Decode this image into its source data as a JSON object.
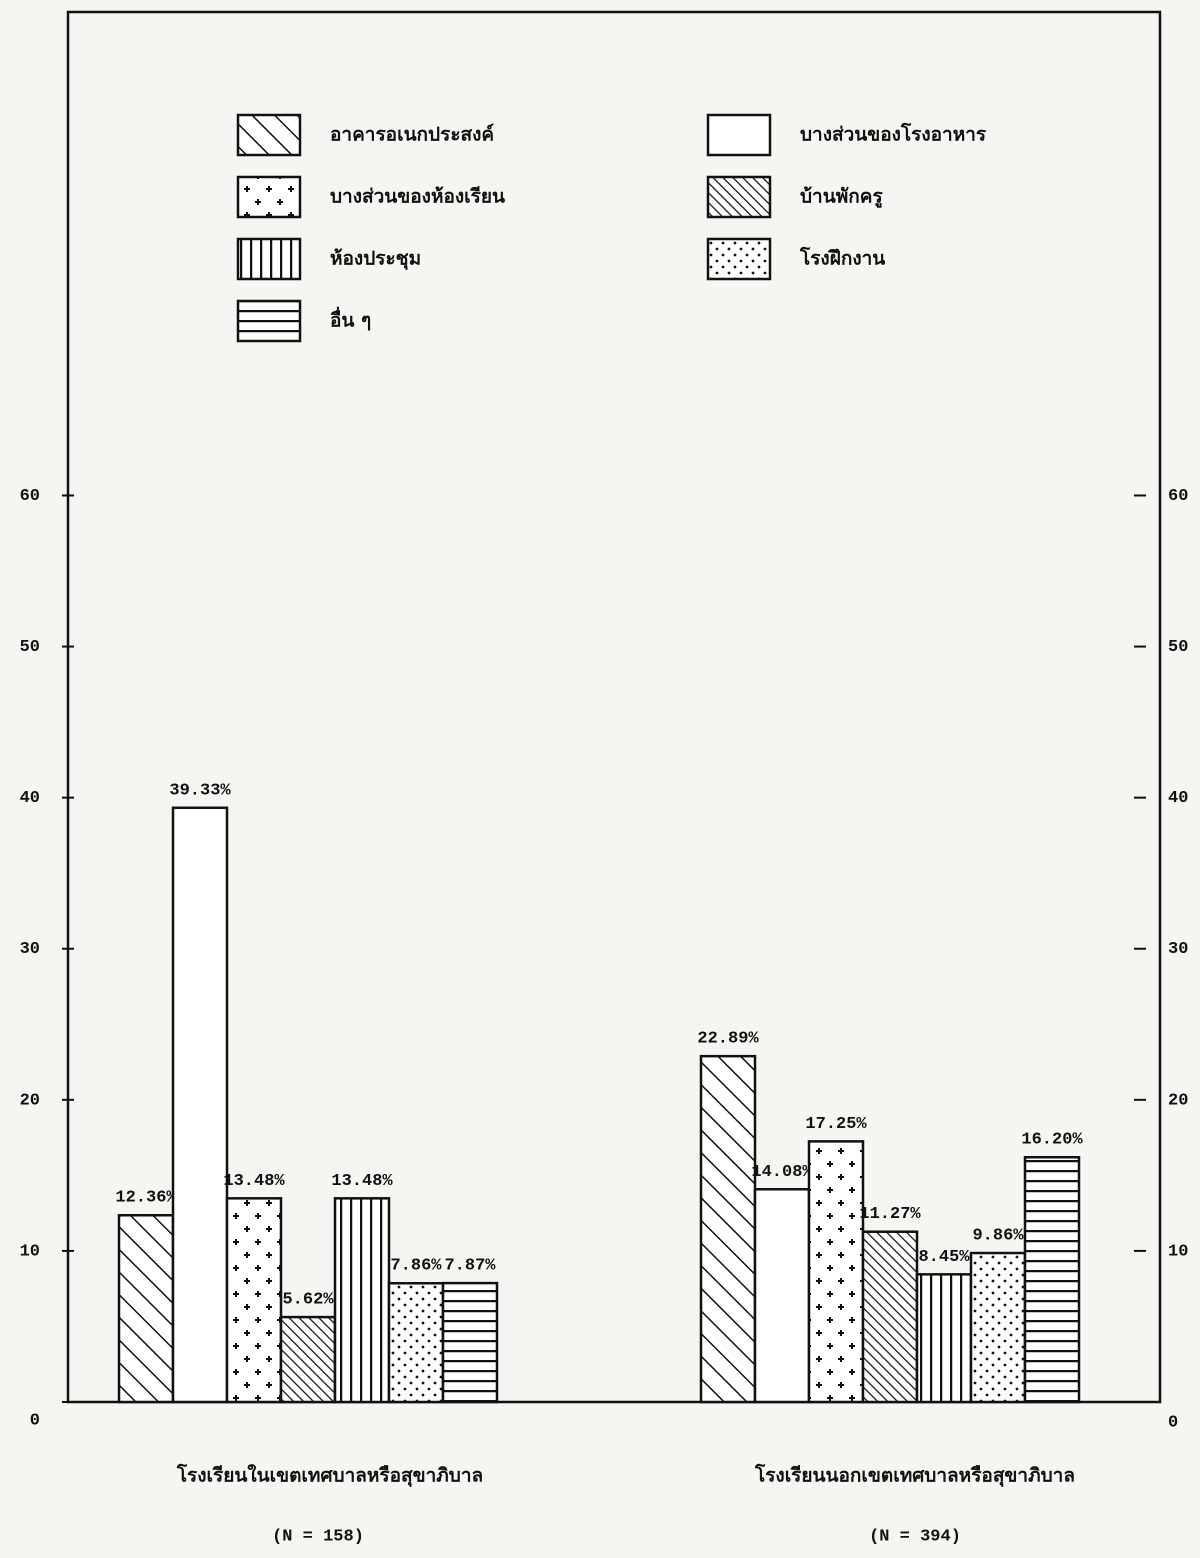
{
  "chart_data": {
    "type": "bar",
    "categories": [
      "โรงเรียนในเขตเทศบาลหรือสุขาภิบาล",
      "โรงเรียนนอกเขตเทศบาลหรือสุขาภิบาล"
    ],
    "category_notes": [
      "(N = 158)",
      "(N = 394)"
    ],
    "series": [
      {
        "name": "อาคารอเนกประสงค์",
        "color": "#111111",
        "pattern": "diagonal",
        "values": [
          12.36,
          22.89
        ],
        "value_labels": [
          "12.36%",
          "22.89%"
        ]
      },
      {
        "name": "บางส่วนของโรงอาหาร",
        "color": "#111111",
        "pattern": "none",
        "values": [
          39.33,
          14.08
        ],
        "value_labels": [
          "39.33%",
          "14.08%"
        ]
      },
      {
        "name": "บางส่วนของห้องเรียน",
        "color": "#111111",
        "pattern": "crosses",
        "values": [
          13.48,
          17.25
        ],
        "value_labels": [
          "13.48%",
          "17.25%"
        ]
      },
      {
        "name": "บ้านพักครู",
        "color": "#111111",
        "pattern": "dense-diagonal",
        "values": [
          5.62,
          11.27
        ],
        "value_labels": [
          "5.62%",
          "11.27%"
        ]
      },
      {
        "name": "ห้องประชุม",
        "color": "#111111",
        "pattern": "vertical",
        "values": [
          13.48,
          8.45
        ],
        "value_labels": [
          "13.48%",
          "8.45%"
        ]
      },
      {
        "name": "โรงฝึกงาน",
        "color": "#111111",
        "pattern": "dots",
        "values": [
          7.86,
          9.86
        ],
        "value_labels": [
          "7.86%",
          "9.86%"
        ]
      },
      {
        "name": "อื่น ๆ",
        "color": "#111111",
        "pattern": "horizontal",
        "values": [
          7.87,
          16.2
        ],
        "value_labels": [
          "7.87%",
          "16.20%"
        ]
      }
    ],
    "ylim": [
      0,
      92
    ],
    "yticks": [
      0,
      10,
      20,
      30,
      40,
      50,
      60
    ],
    "y2ticks": [
      0,
      10,
      20,
      30,
      40,
      50,
      60
    ],
    "grid": false
  }
}
